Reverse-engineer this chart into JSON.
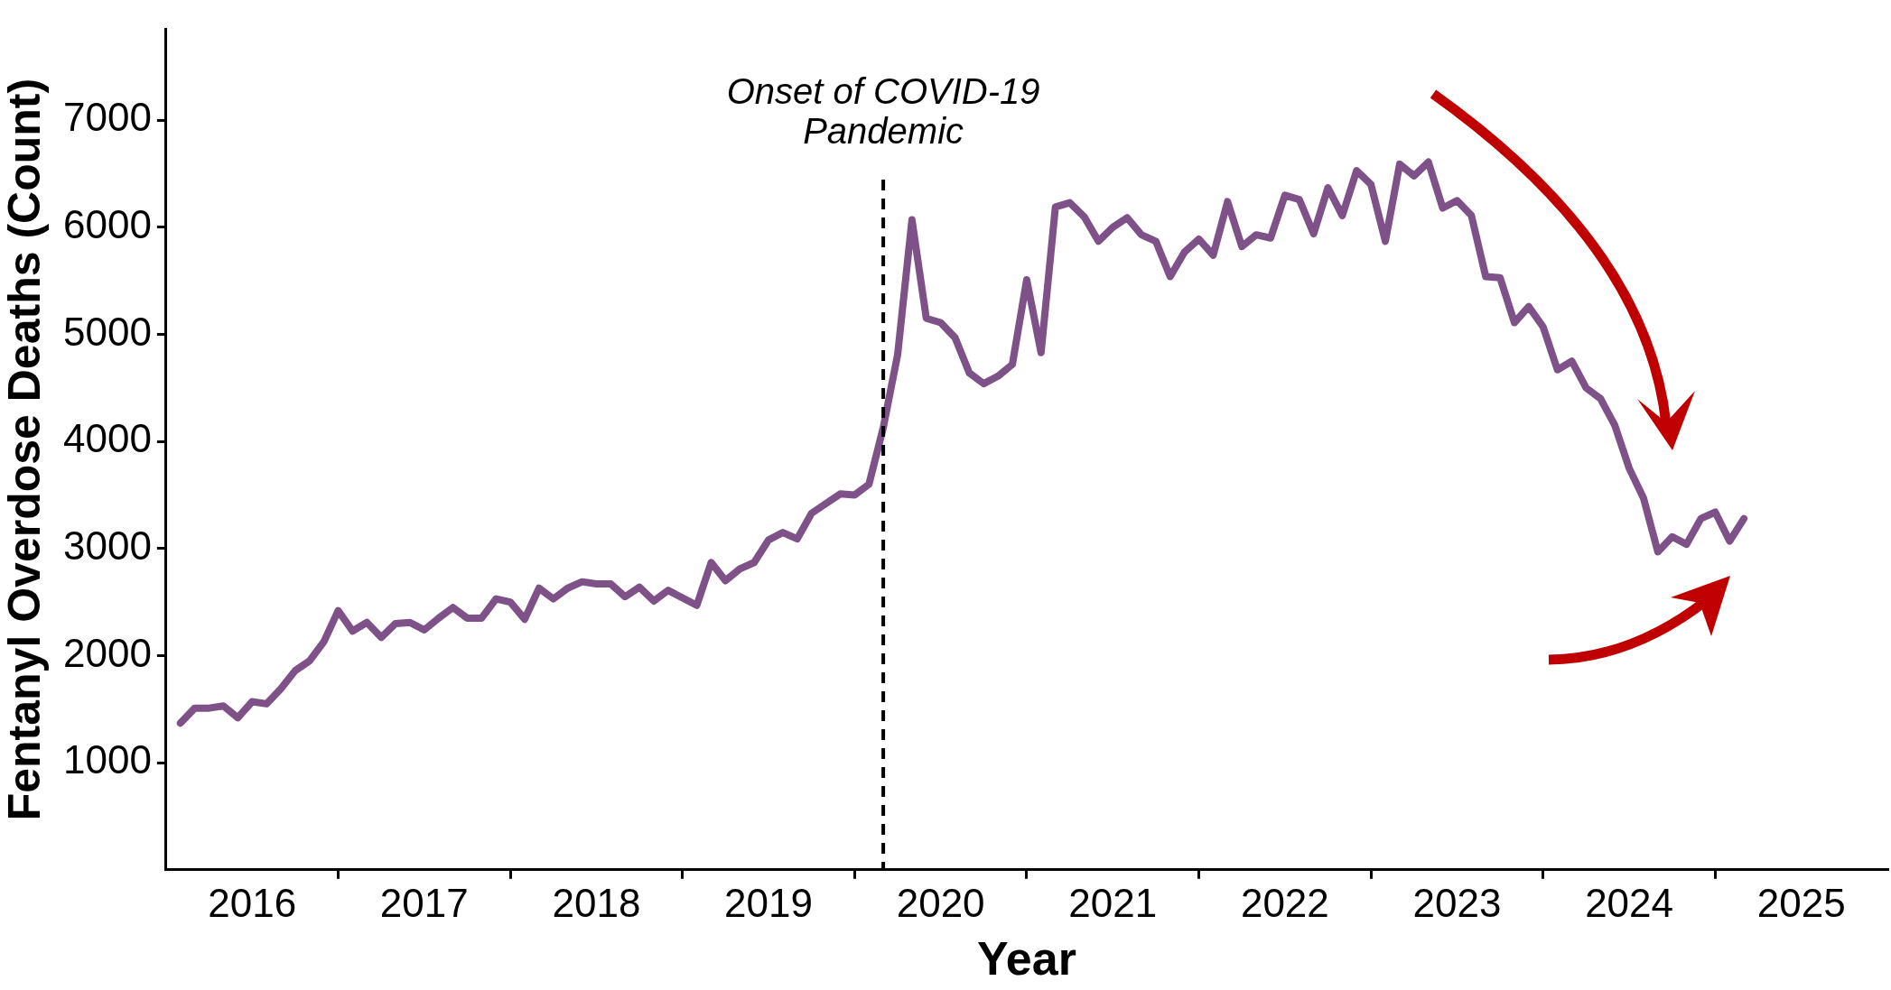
{
  "chart_data": {
    "type": "line",
    "xlabel": "Year",
    "ylabel": "Fentanyl Overdose Deaths (Count)",
    "x": [
      "2016-02",
      "2016-03",
      "2016-04",
      "2016-05",
      "2016-06",
      "2016-07",
      "2016-08",
      "2016-09",
      "2016-10",
      "2016-11",
      "2016-12",
      "2017-01",
      "2017-02",
      "2017-03",
      "2017-04",
      "2017-05",
      "2017-06",
      "2017-07",
      "2017-08",
      "2017-09",
      "2017-10",
      "2017-11",
      "2017-12",
      "2018-01",
      "2018-02",
      "2018-03",
      "2018-04",
      "2018-05",
      "2018-06",
      "2018-07",
      "2018-08",
      "2018-09",
      "2018-10",
      "2018-11",
      "2018-12",
      "2019-01",
      "2019-02",
      "2019-03",
      "2019-04",
      "2019-05",
      "2019-06",
      "2019-07",
      "2019-08",
      "2019-09",
      "2019-10",
      "2019-11",
      "2019-12",
      "2020-01",
      "2020-02",
      "2020-03",
      "2020-04",
      "2020-05",
      "2020-06",
      "2020-07",
      "2020-08",
      "2020-09",
      "2020-10",
      "2020-11",
      "2020-12",
      "2021-01",
      "2021-02",
      "2021-03",
      "2021-04",
      "2021-05",
      "2021-06",
      "2021-07",
      "2021-08",
      "2021-09",
      "2021-10",
      "2021-11",
      "2021-12",
      "2022-01",
      "2022-02",
      "2022-03",
      "2022-04",
      "2022-05",
      "2022-06",
      "2022-07",
      "2022-08",
      "2022-09",
      "2022-10",
      "2022-11",
      "2022-12",
      "2023-01",
      "2023-02",
      "2023-03",
      "2023-04",
      "2023-05",
      "2023-06",
      "2023-07",
      "2023-08",
      "2023-09",
      "2023-10",
      "2023-11",
      "2023-12",
      "2024-01",
      "2024-02",
      "2024-03",
      "2024-04",
      "2024-05",
      "2024-06",
      "2024-07",
      "2024-08",
      "2024-09",
      "2024-10",
      "2024-11",
      "2024-12",
      "2025-01",
      "2025-02",
      "2025-03"
    ],
    "series": [
      {
        "color": "#7e5189",
        "values": [
          1370,
          1510,
          1510,
          1530,
          1420,
          1570,
          1550,
          1690,
          1860,
          1950,
          2130,
          2420,
          2230,
          2310,
          2170,
          2300,
          2310,
          2240,
          2350,
          2450,
          2350,
          2350,
          2530,
          2500,
          2340,
          2630,
          2530,
          2630,
          2690,
          2670,
          2670,
          2550,
          2640,
          2510,
          2610,
          2540,
          2470,
          2870,
          2700,
          2810,
          2870,
          3080,
          3150,
          3090,
          3330,
          3420,
          3510,
          3500,
          3600,
          4130,
          4810,
          6070,
          5150,
          5110,
          4970,
          4640,
          4540,
          4610,
          4720,
          5510,
          4830,
          6190,
          6230,
          6100,
          5870,
          6000,
          6090,
          5930,
          5870,
          5540,
          5770,
          5890,
          5740,
          6240,
          5820,
          5930,
          5900,
          6300,
          6260,
          5940,
          6370,
          6110,
          6530,
          6400,
          5870,
          6590,
          6480,
          6610,
          6180,
          6250,
          6110,
          5540,
          5530,
          5110,
          5260,
          5070,
          4670,
          4750,
          4500,
          4400,
          4150,
          3750,
          3470,
          2970,
          3110,
          3040,
          3280,
          3340,
          3070,
          3280
        ]
      }
    ],
    "xlim": [
      "2016-01",
      "2026-01"
    ],
    "xticks": [
      {
        "value": "2016-07",
        "label": "2016"
      },
      {
        "value": "2017-01",
        "label": null
      },
      {
        "value": "2017-07",
        "label": "2017"
      },
      {
        "value": "2018-01",
        "label": null
      },
      {
        "value": "2018-07",
        "label": "2018"
      },
      {
        "value": "2019-01",
        "label": null
      },
      {
        "value": "2019-07",
        "label": "2019"
      },
      {
        "value": "2020-01",
        "label": null
      },
      {
        "value": "2020-07",
        "label": "2020"
      },
      {
        "value": "2021-01",
        "label": null
      },
      {
        "value": "2021-07",
        "label": "2021"
      },
      {
        "value": "2022-01",
        "label": null
      },
      {
        "value": "2022-07",
        "label": "2022"
      },
      {
        "value": "2023-01",
        "label": null
      },
      {
        "value": "2023-07",
        "label": "2023"
      },
      {
        "value": "2024-01",
        "label": null
      },
      {
        "value": "2024-07",
        "label": "2024"
      },
      {
        "value": "2025-01",
        "label": null
      },
      {
        "value": "2025-07",
        "label": "2025"
      }
    ],
    "ylim": [
      0,
      7850
    ],
    "yticks": [
      1000,
      2000,
      3000,
      4000,
      5000,
      6000,
      7000
    ],
    "ref_lines": [
      {
        "axis": "x",
        "value": "2020-03",
        "label": "Onset of COVID-19 Pandemic",
        "color": "#000000",
        "line_style": "dashed"
      }
    ],
    "grid": false,
    "legend": false,
    "marker": "none",
    "line_style": "solid"
  }
}
